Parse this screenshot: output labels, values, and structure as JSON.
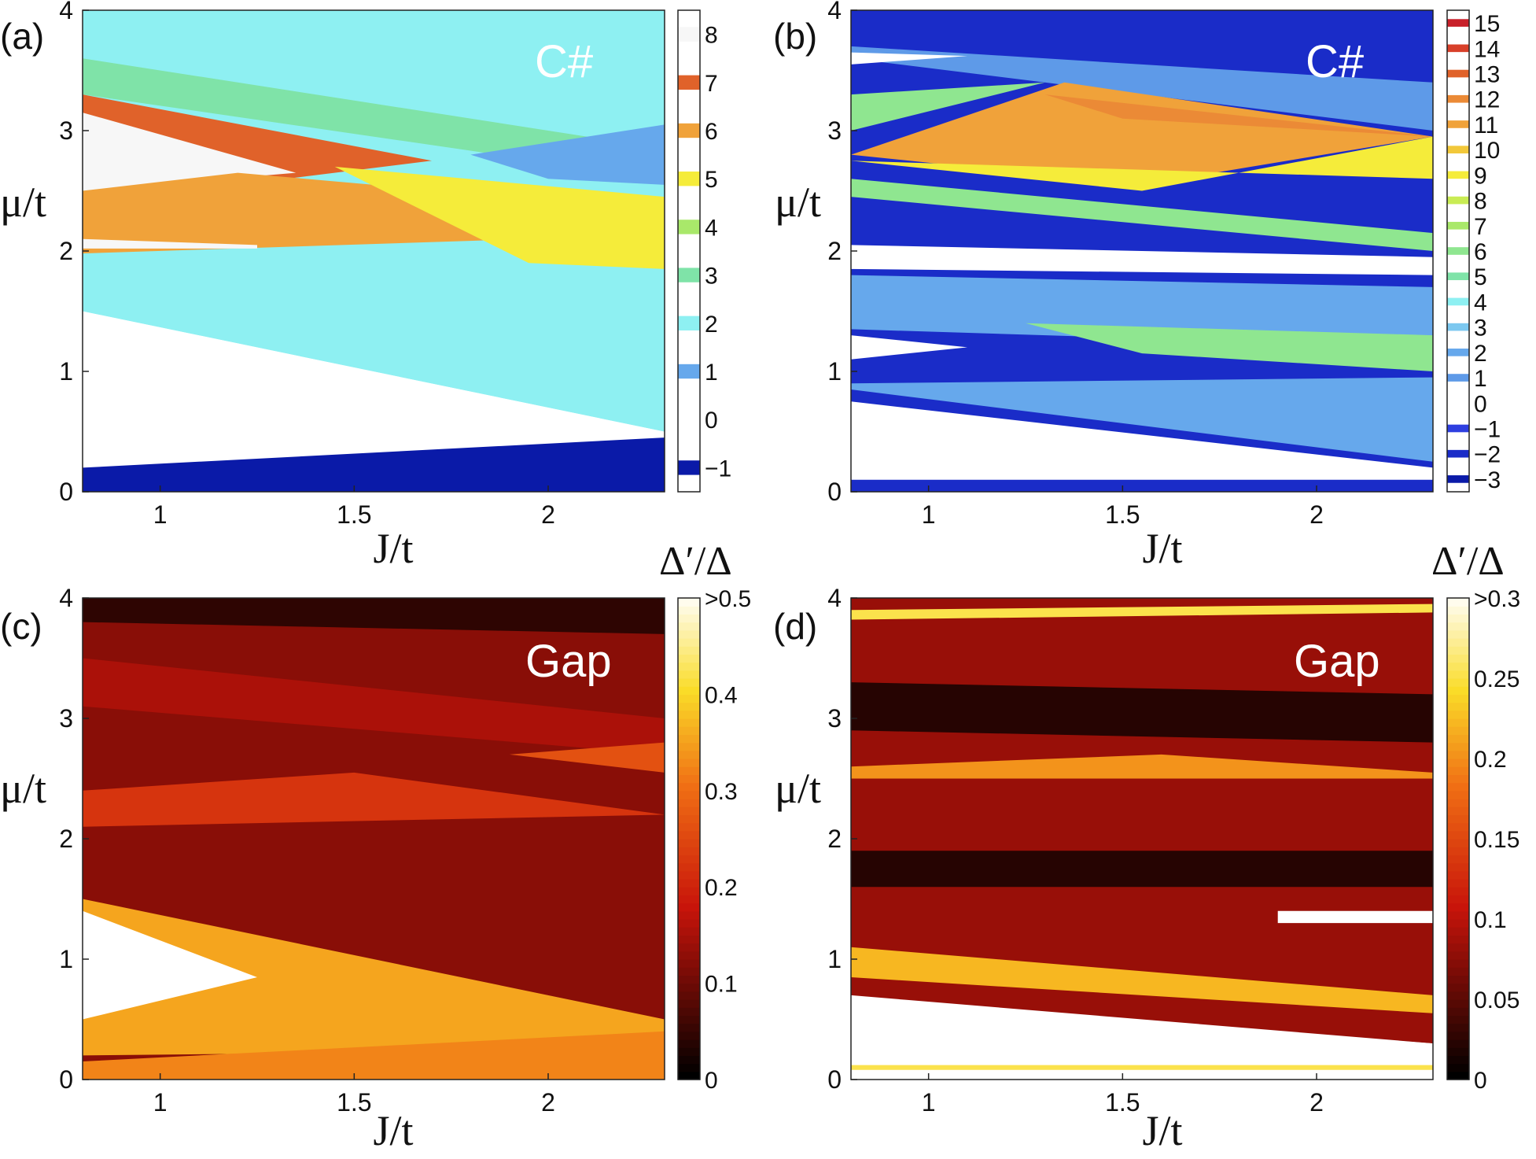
{
  "figure": {
    "title": "Phase diagrams of Chern number and topological gap"
  },
  "chart_data": [
    {
      "panel": "(a)",
      "type": "heatmap",
      "annotation": "C#",
      "xlabel": "J/t",
      "ylabel": "μ/t",
      "xlim": [
        0.8,
        2.3
      ],
      "ylim": [
        0,
        4
      ],
      "xticks": [
        "1",
        "1.5",
        "2"
      ],
      "xtick_values": [
        1,
        1.5,
        2
      ],
      "yticks": [
        "0",
        "1",
        "2",
        "3",
        "4"
      ],
      "ytick_values": [
        0,
        1,
        2,
        3,
        4
      ],
      "colorbar": {
        "title": "",
        "ticks": [
          "8",
          "7",
          "6",
          "5",
          "4",
          "3",
          "2",
          "1",
          "0",
          "−1"
        ],
        "tick_values": [
          8,
          7,
          6,
          5,
          4,
          3,
          2,
          1,
          0,
          -1
        ],
        "range": [
          -1.5,
          8.5
        ],
        "colors": [
          "#0a1aa8",
          "#ffffff",
          "#66a8ec",
          "#8ef0f2",
          "#7fe3a8",
          "#a9e86a",
          "#f5ec3a",
          "#f0a23a",
          "#e0622a",
          "#f7f7f7"
        ]
      },
      "regions": [
        {
          "value": 2,
          "poly": [
            [
              0.8,
              4
            ],
            [
              2.3,
              4
            ],
            [
              2.3,
              0.3
            ],
            [
              0.8,
              1.5
            ]
          ]
        },
        {
          "value": 0,
          "poly": [
            [
              0.8,
              1.5
            ],
            [
              2.3,
              0.5
            ],
            [
              2.3,
              0.35
            ],
            [
              0.8,
              0.2
            ]
          ]
        },
        {
          "value": -1,
          "poly": [
            [
              0.8,
              0.2
            ],
            [
              2.3,
              0.45
            ],
            [
              2.3,
              0
            ],
            [
              0.8,
              0
            ]
          ]
        },
        {
          "value": 2,
          "poly": [
            [
              0.8,
              1.95
            ],
            [
              2.3,
              1.65
            ],
            [
              2.3,
              0.5
            ],
            [
              0.8,
              1.5
            ]
          ]
        },
        {
          "value": 3,
          "poly": [
            [
              0.8,
              3.6
            ],
            [
              2.3,
              2.85
            ],
            [
              2.3,
              2.6
            ],
            [
              0.8,
              3.3
            ]
          ]
        },
        {
          "value": 7,
          "poly": [
            [
              0.8,
              3.3
            ],
            [
              1.7,
              2.75
            ],
            [
              1.2,
              2.55
            ],
            [
              0.8,
              2.6
            ]
          ]
        },
        {
          "value": 8,
          "poly": [
            [
              0.8,
              3.15
            ],
            [
              1.35,
              2.65
            ],
            [
              0.8,
              2.5
            ]
          ]
        },
        {
          "value": 6,
          "poly": [
            [
              0.8,
              2.5
            ],
            [
              1.2,
              2.65
            ],
            [
              1.55,
              2.55
            ],
            [
              1.95,
              2.1
            ],
            [
              0.8,
              1.98
            ]
          ]
        },
        {
          "value": 5,
          "poly": [
            [
              1.45,
              2.7
            ],
            [
              2.3,
              2.45
            ],
            [
              2.3,
              1.85
            ],
            [
              1.95,
              1.9
            ]
          ]
        },
        {
          "value": 1,
          "poly": [
            [
              1.8,
              2.8
            ],
            [
              2.3,
              3.05
            ],
            [
              2.3,
              2.55
            ],
            [
              2.0,
              2.6
            ]
          ]
        },
        {
          "value": 8,
          "poly": [
            [
              0.8,
              2.1
            ],
            [
              1.25,
              2.05
            ],
            [
              1.25,
              2.02
            ],
            [
              0.8,
              2.02
            ]
          ]
        }
      ]
    },
    {
      "panel": "(b)",
      "type": "heatmap",
      "annotation": "C#",
      "xlabel": "J/t",
      "ylabel": "μ/t",
      "xlim": [
        0.8,
        2.3
      ],
      "ylim": [
        0,
        4
      ],
      "xticks": [
        "1",
        "1.5",
        "2"
      ],
      "xtick_values": [
        1,
        1.5,
        2
      ],
      "yticks": [
        "0",
        "1",
        "2",
        "3",
        "4"
      ],
      "ytick_values": [
        0,
        1,
        2,
        3,
        4
      ],
      "colorbar": {
        "title": "",
        "ticks": [
          "15",
          "14",
          "13",
          "12",
          "11",
          "10",
          "9",
          "8",
          "7",
          "6",
          "5",
          "4",
          "3",
          "2",
          "1",
          "0",
          "−1",
          "−2",
          "−3"
        ],
        "tick_values": [
          15,
          14,
          13,
          12,
          11,
          10,
          9,
          8,
          7,
          6,
          5,
          4,
          3,
          2,
          1,
          0,
          -1,
          -2,
          -3
        ],
        "range": [
          -3.5,
          15.5
        ],
        "colors": [
          "#0a1aa8",
          "#1a2cc8",
          "#2e3fe0",
          "#ffffff",
          "#5e9ae8",
          "#66a8ec",
          "#7cc8f0",
          "#8ef0f2",
          "#7fe3a8",
          "#8fe690",
          "#a9e86a",
          "#c9ec54",
          "#f5ec3a",
          "#f2c83a",
          "#f0a23a",
          "#eb8a36",
          "#e0622a",
          "#d8402a",
          "#c8202a"
        ]
      },
      "regions": [
        {
          "value": -2,
          "poly": [
            [
              0.8,
              4
            ],
            [
              2.3,
              4
            ],
            [
              2.3,
              0
            ],
            [
              0.8,
              0
            ]
          ]
        },
        {
          "value": 1,
          "poly": [
            [
              0.8,
              3.7
            ],
            [
              2.3,
              3.4
            ],
            [
              2.3,
              3.0
            ],
            [
              0.8,
              3.6
            ]
          ]
        },
        {
          "value": 0,
          "poly": [
            [
              0.8,
              3.65
            ],
            [
              1.1,
              3.62
            ],
            [
              0.8,
              3.55
            ]
          ]
        },
        {
          "value": 11,
          "poly": [
            [
              0.8,
              2.8
            ],
            [
              1.35,
              3.4
            ],
            [
              2.3,
              2.95
            ],
            [
              1.55,
              2.55
            ]
          ]
        },
        {
          "value": 12,
          "poly": [
            [
              1.3,
              3.3
            ],
            [
              2.3,
              2.95
            ],
            [
              1.5,
              3.1
            ]
          ]
        },
        {
          "value": 9,
          "poly": [
            [
              0.8,
              2.75
            ],
            [
              1.55,
              2.5
            ],
            [
              2.3,
              2.95
            ],
            [
              2.3,
              2.6
            ]
          ]
        },
        {
          "value": 6,
          "poly": [
            [
              0.8,
              3.3
            ],
            [
              1.3,
              3.4
            ],
            [
              0.8,
              3.0
            ]
          ]
        },
        {
          "value": 6,
          "poly": [
            [
              0.8,
              2.6
            ],
            [
              2.3,
              2.15
            ],
            [
              2.3,
              2.0
            ],
            [
              0.8,
              2.45
            ]
          ]
        },
        {
          "value": 0,
          "poly": [
            [
              0.8,
              2.05
            ],
            [
              2.3,
              1.95
            ],
            [
              2.3,
              1.8
            ],
            [
              0.8,
              1.85
            ]
          ]
        },
        {
          "value": 2,
          "poly": [
            [
              0.8,
              1.8
            ],
            [
              2.3,
              1.7
            ],
            [
              2.3,
              1.2
            ],
            [
              0.8,
              1.35
            ]
          ]
        },
        {
          "value": 6,
          "poly": [
            [
              1.25,
              1.4
            ],
            [
              2.3,
              1.3
            ],
            [
              2.3,
              1.0
            ],
            [
              1.55,
              1.15
            ]
          ]
        },
        {
          "value": 0,
          "poly": [
            [
              0.8,
              1.3
            ],
            [
              1.1,
              1.2
            ],
            [
              0.8,
              1.1
            ]
          ]
        },
        {
          "value": 2,
          "poly": [
            [
              0.8,
              0.9
            ],
            [
              2.3,
              0.95
            ],
            [
              2.3,
              0.25
            ],
            [
              0.8,
              0.85
            ]
          ]
        },
        {
          "value": 0,
          "poly": [
            [
              0.8,
              0.75
            ],
            [
              2.3,
              0.2
            ],
            [
              2.3,
              0.1
            ],
            [
              0.8,
              0.1
            ]
          ]
        }
      ]
    },
    {
      "panel": "(c)",
      "type": "heatmap",
      "annotation": "Gap",
      "xlabel": "J/t",
      "ylabel": "μ/t",
      "xlim": [
        0.8,
        2.3
      ],
      "ylim": [
        0,
        4
      ],
      "xticks": [
        "1",
        "1.5",
        "2"
      ],
      "xtick_values": [
        1,
        1.5,
        2
      ],
      "yticks": [
        "0",
        "1",
        "2",
        "3",
        "4"
      ],
      "ytick_values": [
        0,
        1,
        2,
        3,
        4
      ],
      "colorbar": {
        "title": "Δ′/Δ",
        "ticks": [
          ">0.5",
          "0.4",
          "0.3",
          "0.2",
          "0.1",
          "0"
        ],
        "tick_values": [
          0.5,
          0.4,
          0.3,
          0.2,
          0.1,
          0
        ],
        "range": [
          0,
          0.5
        ]
      },
      "regions": [
        {
          "value": 0.12,
          "poly": [
            [
              0.8,
              4
            ],
            [
              2.3,
              4
            ],
            [
              2.3,
              0
            ],
            [
              0.8,
              0
            ]
          ]
        },
        {
          "value": 0.04,
          "poly": [
            [
              0.8,
              4
            ],
            [
              2.3,
              4
            ],
            [
              2.3,
              3.7
            ],
            [
              0.8,
              3.8
            ]
          ]
        },
        {
          "value": 0.15,
          "poly": [
            [
              0.8,
              3.5
            ],
            [
              2.3,
              3.0
            ],
            [
              2.3,
              2.7
            ],
            [
              0.8,
              3.1
            ]
          ]
        },
        {
          "value": 0.22,
          "poly": [
            [
              0.8,
              2.4
            ],
            [
              1.5,
              2.55
            ],
            [
              2.3,
              2.2
            ],
            [
              0.8,
              2.1
            ]
          ]
        },
        {
          "value": 0.35,
          "poly": [
            [
              0.8,
              1.5
            ],
            [
              2.3,
              0.5
            ],
            [
              2.3,
              0.25
            ],
            [
              0.8,
              0.2
            ]
          ]
        },
        {
          "value": 0.5,
          "poly": [
            [
              0.8,
              1.4
            ],
            [
              1.25,
              0.85
            ],
            [
              0.8,
              0.5
            ]
          ]
        },
        {
          "value": 0.32,
          "poly": [
            [
              0.8,
              0.15
            ],
            [
              2.3,
              0.4
            ],
            [
              2.3,
              0
            ],
            [
              0.8,
              0
            ]
          ]
        },
        {
          "value": 0.26,
          "poly": [
            [
              1.9,
              2.7
            ],
            [
              2.3,
              2.8
            ],
            [
              2.3,
              2.55
            ]
          ]
        }
      ]
    },
    {
      "panel": "(d)",
      "type": "heatmap",
      "annotation": "Gap",
      "xlabel": "J/t",
      "ylabel": "μ/t",
      "xlim": [
        0.8,
        2.3
      ],
      "ylim": [
        0,
        4
      ],
      "xticks": [
        "1",
        "1.5",
        "2"
      ],
      "xtick_values": [
        1,
        1.5,
        2
      ],
      "yticks": [
        "0",
        "1",
        "2",
        "3",
        "4"
      ],
      "ytick_values": [
        0,
        1,
        2,
        3,
        4
      ],
      "colorbar": {
        "title": "Δ′/Δ",
        "ticks": [
          ">0.3",
          "0.25",
          "0.2",
          "0.15",
          "0.1",
          "0.05",
          "0"
        ],
        "tick_values": [
          0.3,
          0.25,
          0.2,
          0.15,
          0.1,
          0.05,
          0
        ],
        "range": [
          0,
          0.3
        ]
      },
      "regions": [
        {
          "value": 0.08,
          "poly": [
            [
              0.8,
              4
            ],
            [
              2.3,
              4
            ],
            [
              2.3,
              0.3
            ],
            [
              0.8,
              0.7
            ]
          ]
        },
        {
          "value": 0.25,
          "poly": [
            [
              0.8,
              3.9
            ],
            [
              2.3,
              3.95
            ],
            [
              2.3,
              3.88
            ],
            [
              0.8,
              3.82
            ]
          ]
        },
        {
          "value": 0.02,
          "poly": [
            [
              0.8,
              3.3
            ],
            [
              2.3,
              3.2
            ],
            [
              2.3,
              2.8
            ],
            [
              0.8,
              2.9
            ]
          ]
        },
        {
          "value": 0.2,
          "poly": [
            [
              0.8,
              2.6
            ],
            [
              1.6,
              2.7
            ],
            [
              2.3,
              2.55
            ],
            [
              2.3,
              2.5
            ],
            [
              0.8,
              2.5
            ]
          ]
        },
        {
          "value": 0.02,
          "poly": [
            [
              0.8,
              1.9
            ],
            [
              2.3,
              1.9
            ],
            [
              2.3,
              1.6
            ],
            [
              0.8,
              1.6
            ]
          ]
        },
        {
          "value": 0.3,
          "poly": [
            [
              1.9,
              1.4
            ],
            [
              2.3,
              1.4
            ],
            [
              2.3,
              1.3
            ],
            [
              1.9,
              1.3
            ]
          ]
        },
        {
          "value": 0.22,
          "poly": [
            [
              0.8,
              1.1
            ],
            [
              2.3,
              0.7
            ],
            [
              2.3,
              0.55
            ],
            [
              0.8,
              0.85
            ]
          ]
        },
        {
          "value": 0.3,
          "poly": [
            [
              0.8,
              0.65
            ],
            [
              2.3,
              0.3
            ],
            [
              2.3,
              0.15
            ],
            [
              0.8,
              0.15
            ]
          ]
        },
        {
          "value": 0.25,
          "poly": [
            [
              0.8,
              0.12
            ],
            [
              2.3,
              0.12
            ],
            [
              2.3,
              0.08
            ],
            [
              0.8,
              0.08
            ]
          ]
        }
      ]
    }
  ]
}
